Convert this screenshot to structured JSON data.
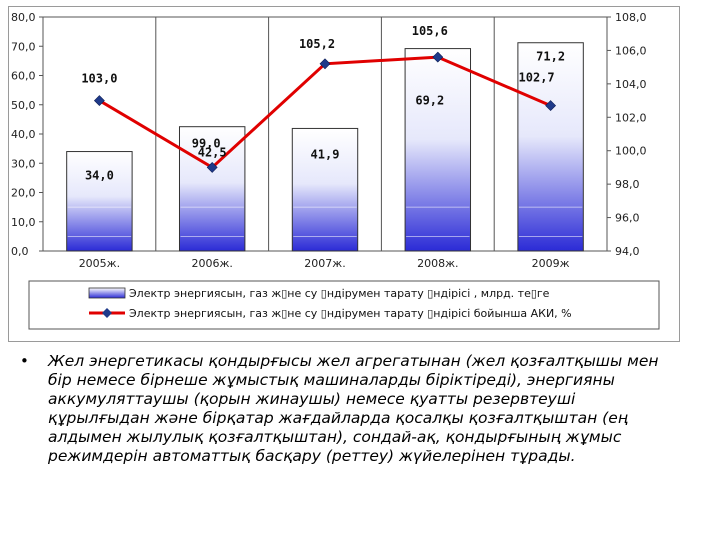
{
  "chart_data": {
    "type": "bar",
    "categories": [
      "2005ж.",
      "2006ж.",
      "2007ж.",
      "2008ж.",
      "2009ж"
    ],
    "series": [
      {
        "name": "Электр энергиясын, газ ж▯не су ▯ндірумен тарату ▯ндірісі , млрд. те▯ге",
        "type": "bar",
        "axis": "left",
        "values": [
          34.0,
          42.5,
          41.9,
          69.2,
          71.2
        ],
        "labels": [
          "34,0",
          "42,5",
          "41,9",
          "69,2",
          "71,2"
        ]
      },
      {
        "name": "Электр энергиясын, газ ж▯не су ▯ндірумен тарату ▯ндірісі бойынша АКИ, %",
        "type": "line",
        "axis": "right",
        "values": [
          103.0,
          99.0,
          105.2,
          105.6,
          102.7
        ],
        "labels": [
          "103,0",
          "99,0",
          "105,2",
          "105,6",
          "102,7"
        ]
      }
    ],
    "left_axis": {
      "min": 0,
      "max": 80,
      "step": 10,
      "ticks": [
        "0,0",
        "10,0",
        "20,0",
        "30,0",
        "40,0",
        "50,0",
        "60,0",
        "70,0",
        "80,0"
      ]
    },
    "right_axis": {
      "min": 94,
      "max": 108,
      "step": 2,
      "ticks": [
        "94,0",
        "96,0",
        "98,0",
        "100,0",
        "102,0",
        "104,0",
        "106,0",
        "108,0"
      ]
    },
    "grid": "vertical category separators",
    "legend_placement": "bottom",
    "colors": {
      "bar_top": "#ffffff",
      "bar_bottom": "#2b2bd6",
      "line": "#e00000",
      "marker": "#1f3a8a"
    }
  },
  "bullet": {
    "marker": "•",
    "text": "Жел энергетикасы қондырғысы жел агрегатынан (жел қозғалтқышы мен бір немесе бірнеше жұмыстық машиналарды біріктіреді), энергияны аккумуляттаушы (қорын жинаушы) немесе қуатты резервтеуші құрылғыдан және бірқатар жағдайларда қосалқы қозғалтқыштан (ең алдымен жылулық қозғалтқыштан), сондай-ақ, қондырғының жұмыс режимдерін автоматтық басқару (реттеу) жүйелерінен тұрады."
  }
}
